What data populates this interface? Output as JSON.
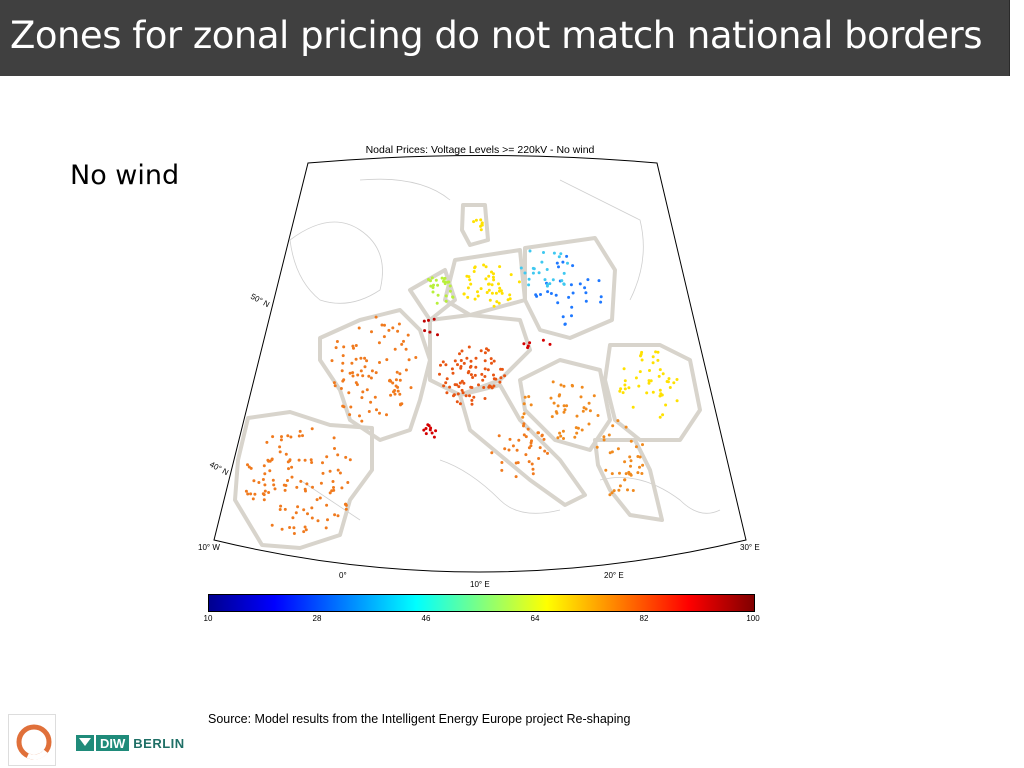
{
  "slide": {
    "title": "Zones for zonal pricing do not match national borders",
    "subtitle_label": "No wind",
    "source": "Source: Model results from the Intelligent Energy Europe project Re-shaping"
  },
  "map": {
    "title": "Nodal Prices: Voltage Levels >= 220kV - No wind",
    "lat_labels": [
      "50° N",
      "40° N"
    ],
    "lon_labels": [
      "10° W",
      "0°",
      "10° E",
      "20° E",
      "30° E"
    ],
    "colorbar_ticks": [
      "10",
      "28",
      "46",
      "64",
      "82",
      "100"
    ],
    "colormap": "jet",
    "value_range": [
      10,
      100
    ]
  },
  "logo": {
    "diw": "DIW",
    "berlin": "BERLIN"
  },
  "colors": {
    "title_bar": "#404040",
    "title_text": "#ffffff",
    "zone_outline": "#d8d4cc"
  }
}
